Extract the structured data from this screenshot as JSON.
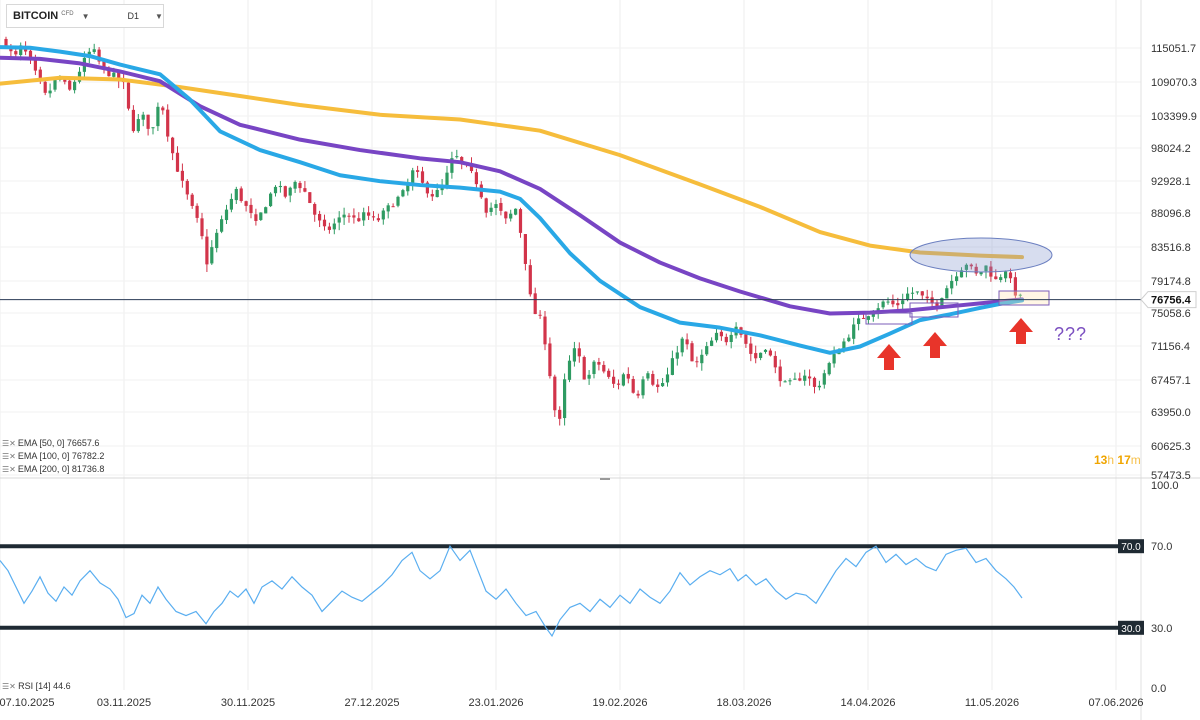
{
  "header": {
    "symbol": "BITCOIN",
    "symbol_tag": "CFD",
    "timeframe": "D1"
  },
  "price_axis": {
    "ticks": [
      "115051.7",
      "109070.3",
      "103399.9",
      "98024.2",
      "92928.1",
      "88096.8",
      "83516.8",
      "79174.8",
      "75058.6",
      "71156.4",
      "67457.1",
      "63950.0",
      "60625.3",
      "57473.5"
    ],
    "current": "76756.4"
  },
  "time_axis": [
    "07.10.2025",
    "03.11.2025",
    "30.11.2025",
    "27.12.2025",
    "23.01.2026",
    "19.02.2026",
    "18.03.2026",
    "14.04.2026",
    "11.05.2026",
    "07.06.2026"
  ],
  "indicators": {
    "ema50": "EMA [50, 0]  76657.6",
    "ema100": "EMA [100, 0]  76782.2",
    "ema200": "EMA [200, 0]  81736.8",
    "rsi": "RSI [14]  44.6"
  },
  "timer": {
    "h": "13",
    "h_unit": "h",
    "m": "17",
    "m_unit": "m"
  },
  "annotation": "???",
  "rsi_axis": {
    "top": "100.0",
    "upper_level": "70.0",
    "lower_level": "30.0",
    "bottom": "0.0",
    "upper_box": "70.0",
    "lower_box": "30.0"
  },
  "colors": {
    "up": "#2e9b62",
    "down": "#d2344a",
    "ema50": "#29a8e6",
    "ema100": "#7845c4",
    "ema200": "#f6bd3c",
    "rsi": "#5aaef0",
    "arrow": "#e8342a"
  },
  "chart_data": {
    "type": "candlestick",
    "price_range": [
      57473.5,
      118000
    ],
    "ema_values_last": {
      "ema50": 76657.6,
      "ema100": 76782.2,
      "ema200": 81736.8
    },
    "current_price": 76756.4,
    "rsi_last": 44.6,
    "rsi_levels": [
      30,
      70
    ],
    "rsi_range": [
      0,
      100
    ]
  }
}
